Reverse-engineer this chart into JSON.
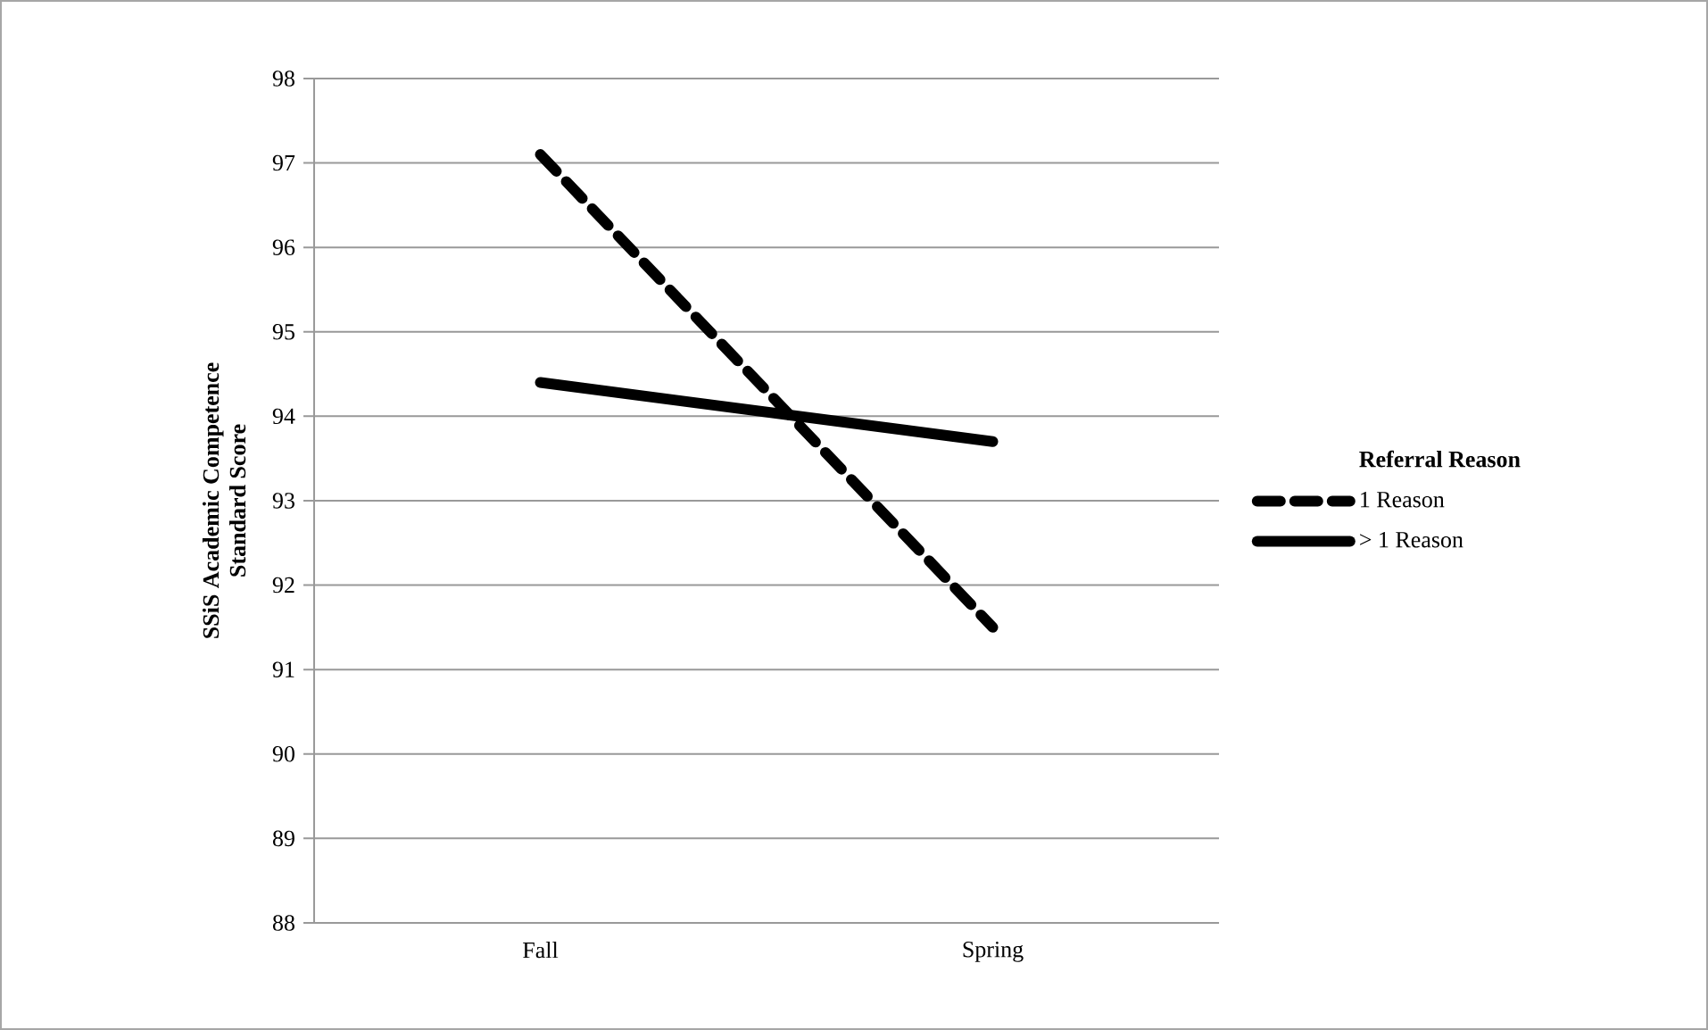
{
  "chart_data": {
    "type": "line",
    "ylabel": "SSiS Academic Competence\nStandard Score",
    "legend_title": "Referral Reason",
    "categories": [
      "Fall",
      "Spring"
    ],
    "series": [
      {
        "name": "1 Reason",
        "color": "#000000",
        "line_style": "dashed",
        "values": [
          97.1,
          91.5
        ]
      },
      {
        "name": "> 1 Reason",
        "color": "#000000",
        "line_style": "solid",
        "values": [
          94.4,
          93.7
        ]
      }
    ],
    "ylim": [
      88,
      98
    ],
    "yticks": [
      88,
      89,
      90,
      91,
      92,
      93,
      94,
      95,
      96,
      97,
      98
    ],
    "grid": "y",
    "legend": "right",
    "marker": "none"
  }
}
